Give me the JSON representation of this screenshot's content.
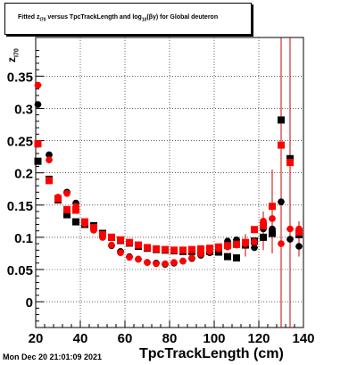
{
  "title": "Fitted  z_{I70}  versus TpcTrackLength and log_{10}(βγ) for Global deuteron",
  "title_display": "Fitted  z",
  "title_sub1": "I70",
  "title_mid": "  versus TpcTrackLength and log",
  "title_sub2": "10",
  "title_end": "(βγ) for Global deuteron",
  "ylabel_display": "z",
  "ylabel_sub": "I70",
  "footer": "Mon Dec 20 21:01:09 2021",
  "chart_data": {
    "type": "scatter",
    "title": "Fitted z_{I70} versus TpcTrackLength and log_{10}(βγ) for Global deuteron",
    "xlabel": "TpcTrackLength (cm)",
    "ylabel": "z_{I70}",
    "xlim": [
      20,
      140
    ],
    "ylim": [
      -0.04,
      0.41
    ],
    "xticks": [
      20,
      40,
      60,
      80,
      100,
      120,
      140
    ],
    "yticks": [
      0,
      0.05,
      0.1,
      0.15,
      0.2,
      0.25,
      0.3,
      0.35
    ],
    "grid": true,
    "series": [
      {
        "marker": "square",
        "color": "#000000",
        "points": [
          {
            "x": 21,
            "y": 0.218
          },
          {
            "x": 26,
            "y": 0.19
          },
          {
            "x": 30,
            "y": 0.158
          },
          {
            "x": 34,
            "y": 0.135
          },
          {
            "x": 38,
            "y": 0.124
          },
          {
            "x": 42,
            "y": 0.12
          },
          {
            "x": 46,
            "y": 0.118
          },
          {
            "x": 50,
            "y": 0.106
          },
          {
            "x": 54,
            "y": 0.1
          },
          {
            "x": 58,
            "y": 0.095
          },
          {
            "x": 62,
            "y": 0.091
          },
          {
            "x": 66,
            "y": 0.086
          },
          {
            "x": 70,
            "y": 0.083
          },
          {
            "x": 74,
            "y": 0.081
          },
          {
            "x": 78,
            "y": 0.08
          },
          {
            "x": 82,
            "y": 0.079
          },
          {
            "x": 86,
            "y": 0.078
          },
          {
            "x": 90,
            "y": 0.078
          },
          {
            "x": 94,
            "y": 0.078
          },
          {
            "x": 98,
            "y": 0.078
          },
          {
            "x": 102,
            "y": 0.077
          },
          {
            "x": 106,
            "y": 0.07
          },
          {
            "x": 110,
            "y": 0.068
          },
          {
            "x": 114,
            "y": 0.088
          },
          {
            "x": 118,
            "y": 0.094
          },
          {
            "x": 122,
            "y": 0.1
          },
          {
            "x": 126,
            "y": 0.106
          },
          {
            "x": 130,
            "y": 0.282
          },
          {
            "x": 134,
            "y": 0.222
          },
          {
            "x": 138,
            "y": 0.104
          }
        ]
      },
      {
        "marker": "circle",
        "color": "#000000",
        "points": [
          {
            "x": 21,
            "y": 0.306
          },
          {
            "x": 26,
            "y": 0.228
          },
          {
            "x": 30,
            "y": 0.162
          },
          {
            "x": 34,
            "y": 0.17
          },
          {
            "x": 38,
            "y": 0.153
          },
          {
            "x": 42,
            "y": 0.123
          },
          {
            "x": 46,
            "y": 0.112
          },
          {
            "x": 50,
            "y": 0.1
          },
          {
            "x": 54,
            "y": 0.087
          },
          {
            "x": 58,
            "y": 0.078
          },
          {
            "x": 62,
            "y": 0.07
          },
          {
            "x": 66,
            "y": 0.066
          },
          {
            "x": 70,
            "y": 0.061
          },
          {
            "x": 74,
            "y": 0.06
          },
          {
            "x": 78,
            "y": 0.058
          },
          {
            "x": 82,
            "y": 0.06
          },
          {
            "x": 86,
            "y": 0.063
          },
          {
            "x": 90,
            "y": 0.067
          },
          {
            "x": 94,
            "y": 0.072
          },
          {
            "x": 98,
            "y": 0.076
          },
          {
            "x": 102,
            "y": 0.082
          },
          {
            "x": 106,
            "y": 0.094
          },
          {
            "x": 110,
            "y": 0.096
          },
          {
            "x": 114,
            "y": 0.091
          },
          {
            "x": 118,
            "y": 0.084
          },
          {
            "x": 122,
            "y": 0.113
          },
          {
            "x": 126,
            "y": 0.113
          },
          {
            "x": 130,
            "y": 0.155
          },
          {
            "x": 134,
            "y": 0.097
          },
          {
            "x": 138,
            "y": 0.086
          }
        ]
      },
      {
        "marker": "square",
        "color": "#ff0000",
        "points": [
          {
            "x": 21,
            "y": 0.245
          },
          {
            "x": 26,
            "y": 0.188
          },
          {
            "x": 30,
            "y": 0.16
          },
          {
            "x": 34,
            "y": 0.143
          },
          {
            "x": 38,
            "y": 0.142
          },
          {
            "x": 42,
            "y": 0.124
          },
          {
            "x": 46,
            "y": 0.115
          },
          {
            "x": 50,
            "y": 0.104
          },
          {
            "x": 54,
            "y": 0.1
          },
          {
            "x": 58,
            "y": 0.096
          },
          {
            "x": 62,
            "y": 0.092
          },
          {
            "x": 66,
            "y": 0.088
          },
          {
            "x": 70,
            "y": 0.084
          },
          {
            "x": 74,
            "y": 0.082
          },
          {
            "x": 78,
            "y": 0.081
          },
          {
            "x": 82,
            "y": 0.08
          },
          {
            "x": 86,
            "y": 0.08
          },
          {
            "x": 90,
            "y": 0.081
          },
          {
            "x": 94,
            "y": 0.082
          },
          {
            "x": 98,
            "y": 0.083
          },
          {
            "x": 102,
            "y": 0.085
          },
          {
            "x": 106,
            "y": 0.087
          },
          {
            "x": 110,
            "y": 0.089
          },
          {
            "x": 114,
            "y": 0.092
          },
          {
            "x": 118,
            "y": 0.112
          },
          {
            "x": 122,
            "y": 0.118
          },
          {
            "x": 126,
            "y": 0.148
          },
          {
            "x": 130,
            "y": 0.243
          },
          {
            "x": 134,
            "y": 0.216
          },
          {
            "x": 138,
            "y": 0.108
          }
        ]
      },
      {
        "marker": "circle",
        "color": "#ff0000",
        "points": [
          {
            "x": 21,
            "y": 0.336
          },
          {
            "x": 26,
            "y": 0.22
          },
          {
            "x": 30,
            "y": 0.162
          },
          {
            "x": 34,
            "y": 0.168
          },
          {
            "x": 38,
            "y": 0.148
          },
          {
            "x": 42,
            "y": 0.121
          },
          {
            "x": 46,
            "y": 0.111
          },
          {
            "x": 50,
            "y": 0.1
          },
          {
            "x": 54,
            "y": 0.088
          },
          {
            "x": 58,
            "y": 0.076
          },
          {
            "x": 62,
            "y": 0.069
          },
          {
            "x": 66,
            "y": 0.066
          },
          {
            "x": 70,
            "y": 0.061
          },
          {
            "x": 74,
            "y": 0.059
          },
          {
            "x": 78,
            "y": 0.059
          },
          {
            "x": 82,
            "y": 0.061
          },
          {
            "x": 86,
            "y": 0.063
          },
          {
            "x": 90,
            "y": 0.068
          },
          {
            "x": 94,
            "y": 0.074
          },
          {
            "x": 98,
            "y": 0.078
          },
          {
            "x": 102,
            "y": 0.082
          },
          {
            "x": 106,
            "y": 0.085
          },
          {
            "x": 110,
            "y": 0.088
          },
          {
            "x": 114,
            "y": 0.09
          },
          {
            "x": 118,
            "y": 0.093
          },
          {
            "x": 122,
            "y": 0.125
          },
          {
            "x": 126,
            "y": 0.129
          },
          {
            "x": 130,
            "y": 0.09
          },
          {
            "x": 134,
            "y": 0.113
          },
          {
            "x": 138,
            "y": 0.113
          }
        ]
      }
    ],
    "error_bars": [
      {
        "x": 114,
        "ylo": 0.07,
        "yhi": 0.105
      },
      {
        "x": 122,
        "ylo": 0.08,
        "yhi": 0.14
      },
      {
        "x": 126,
        "ylo": 0.075,
        "yhi": 0.205
      },
      {
        "x": 130,
        "ylo": -0.04,
        "yhi": 0.41
      },
      {
        "x": 134,
        "ylo": -0.04,
        "yhi": 0.41
      },
      {
        "x": 138,
        "ylo": 0.07,
        "yhi": 0.125
      }
    ]
  }
}
